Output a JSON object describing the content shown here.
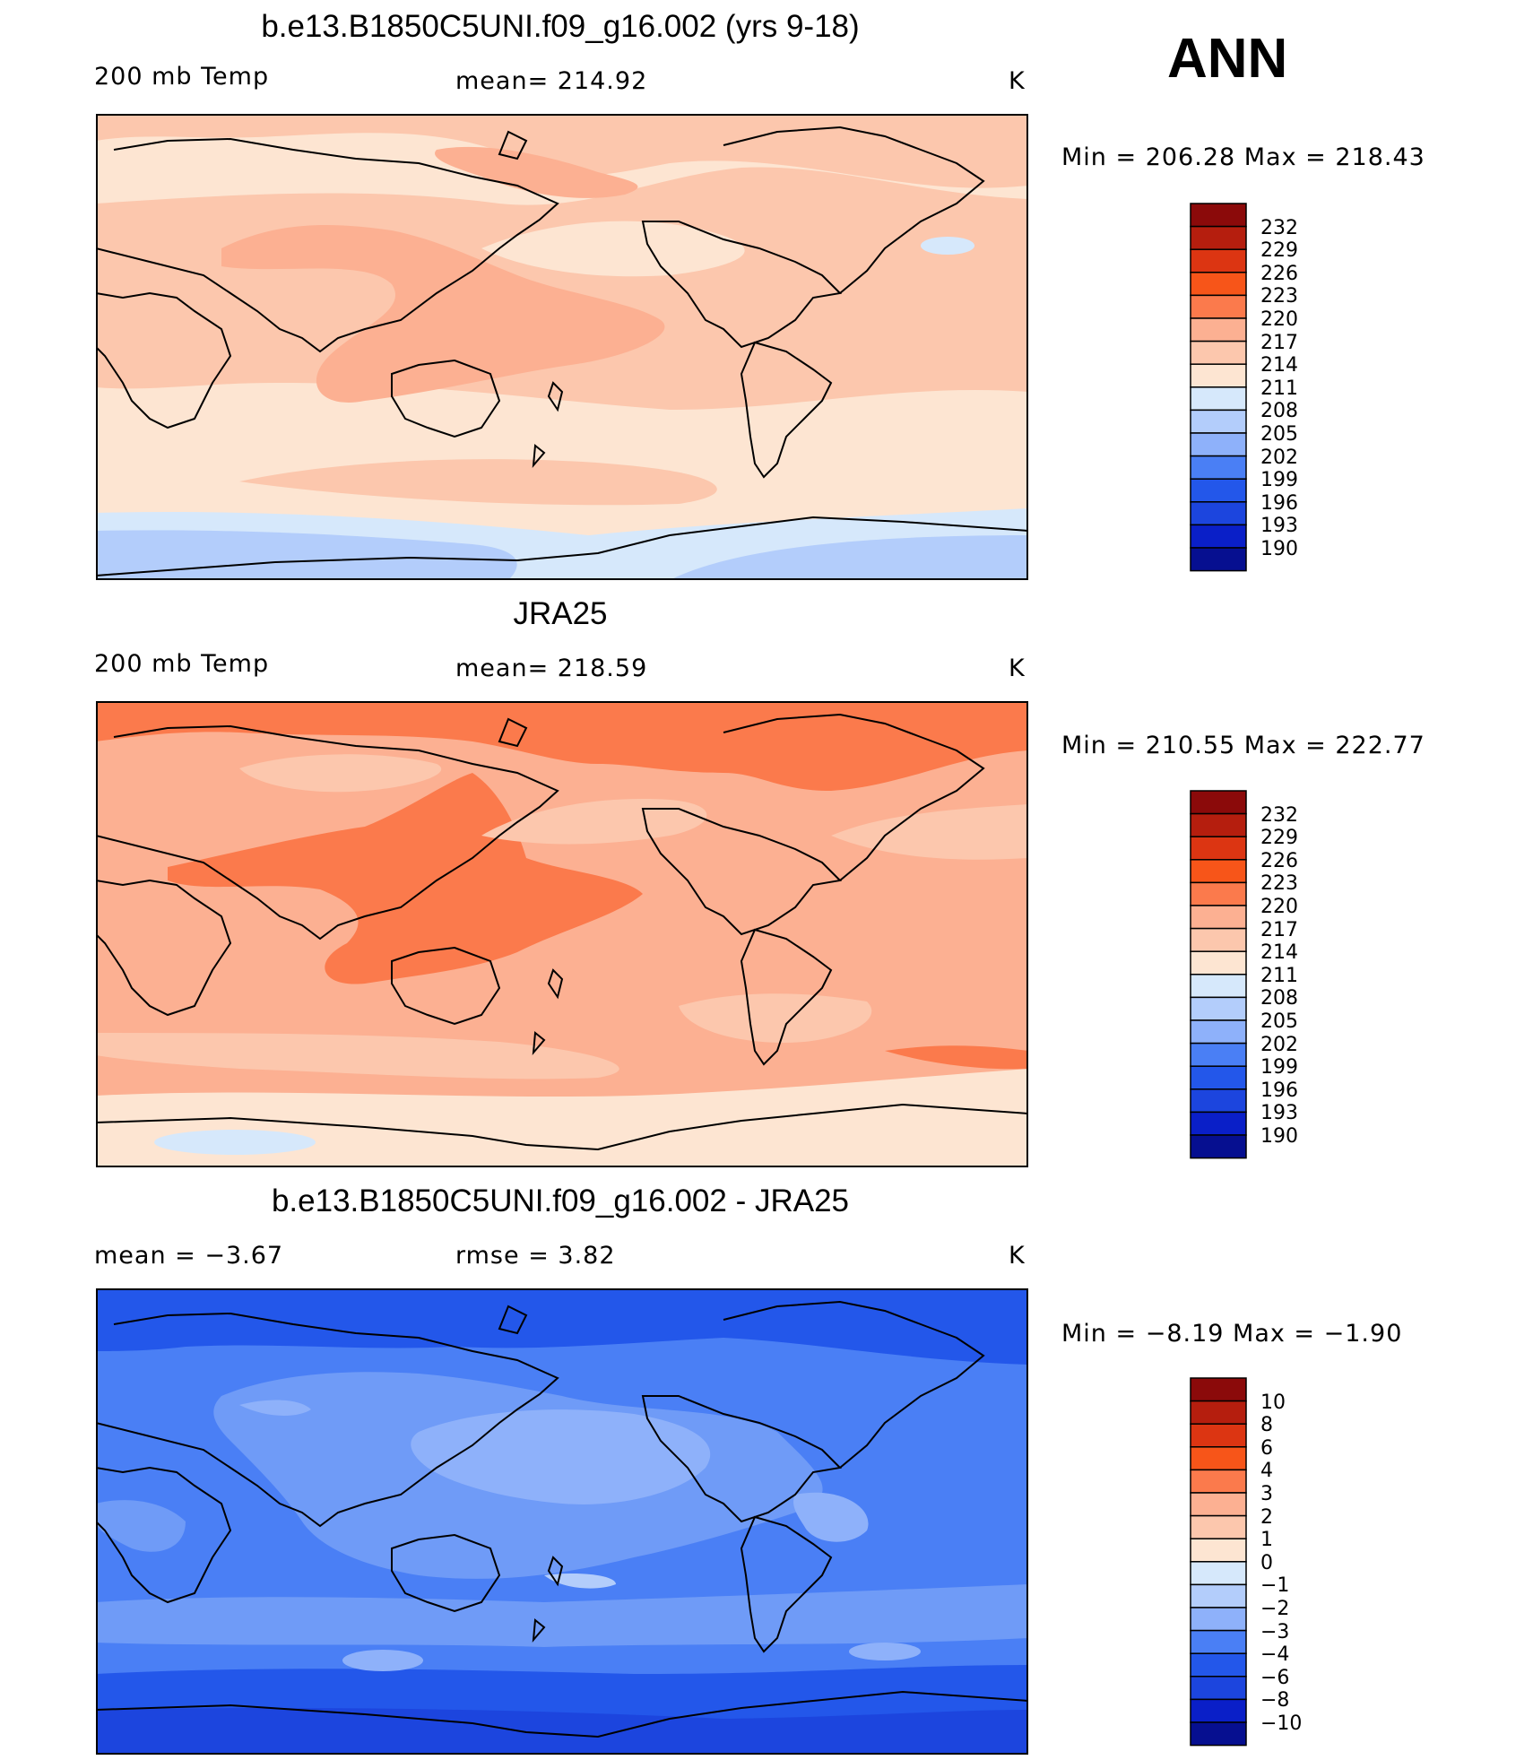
{
  "season": "ANN",
  "units": "K",
  "panels": [
    {
      "title": "b.e13.B1850C5UNI.f09_g16.002 (yrs 9-18)",
      "left_label": "200 mb Temp",
      "center_label": "mean= 214.92",
      "units_label": "K",
      "minmax": "Min = 206.28 Max = 218.43",
      "colorbar_labels": [
        "232",
        "229",
        "226",
        "223",
        "220",
        "217",
        "214",
        "211",
        "208",
        "205",
        "202",
        "199",
        "196",
        "193",
        "190"
      ],
      "background_color": "#fde5d2",
      "bands": [
        {
          "color": "#fcc7ad"
        },
        {
          "color": "#fcc7ad"
        },
        {
          "color": "#fcb092"
        },
        {
          "color": "#fcb092"
        },
        {
          "color": "#fde5d2"
        },
        {
          "color": "#fcc7ad"
        },
        {
          "color": "#d6e8fb"
        },
        {
          "color": "#b3cdfb"
        },
        {
          "color": "#d6e8fb"
        }
      ]
    },
    {
      "title": "JRA25",
      "left_label": "200 mb Temp",
      "center_label": "mean= 218.59",
      "units_label": "K",
      "minmax": "Min = 210.55 Max = 222.77",
      "colorbar_labels": [
        "232",
        "229",
        "226",
        "223",
        "220",
        "217",
        "214",
        "211",
        "208",
        "205",
        "202",
        "199",
        "196",
        "193",
        "190"
      ],
      "background_color": "#fcb092",
      "bands": [
        {
          "color": "#fb7a4c"
        },
        {
          "color": "#fcc7ad"
        },
        {
          "color": "#fb7a4c"
        },
        {
          "color": "#fcc7ad"
        },
        {
          "color": "#fcc7ad"
        },
        {
          "color": "#fde5d2"
        },
        {
          "color": "#d6e8fb"
        },
        {
          "color": "#fb7a4c"
        }
      ]
    },
    {
      "title": "b.e13.B1850C5UNI.f09_g16.002 - JRA25",
      "left_label": "mean = −3.67",
      "center_label": "rmse = 3.82",
      "units_label": "K",
      "minmax": "Min = −8.19 Max = −1.90",
      "colorbar_labels": [
        "10",
        "8",
        "6",
        "4",
        "3",
        "2",
        "1",
        "0",
        "−1",
        "−2",
        "−3",
        "−4",
        "−6",
        "−8",
        "−10"
      ],
      "background_color": "#4a7ff5",
      "bands": [
        {
          "color": "#2357ea"
        },
        {
          "color": "#6f9bf7"
        },
        {
          "color": "#8eb1fa"
        },
        {
          "color": "#8eb1fa"
        },
        {
          "color": "#8eb1fa"
        },
        {
          "color": "#6f9bf7"
        },
        {
          "color": "#2357ea"
        },
        {
          "color": "#1c45de"
        },
        {
          "color": "#b3cdfb"
        },
        {
          "color": "#8eb1fa"
        },
        {
          "color": "#8eb1fa"
        }
      ]
    }
  ],
  "colorbar_colors": [
    "#8b0a0a",
    "#b51e0e",
    "#dc3512",
    "#f75519",
    "#fb7a4c",
    "#fcb092",
    "#fcc7ad",
    "#fde5d2",
    "#d6e8fb",
    "#b3cdfb",
    "#8eb1fa",
    "#4a7ff5",
    "#2357ea",
    "#1c45de",
    "#0a1fc8",
    "#060f90"
  ]
}
